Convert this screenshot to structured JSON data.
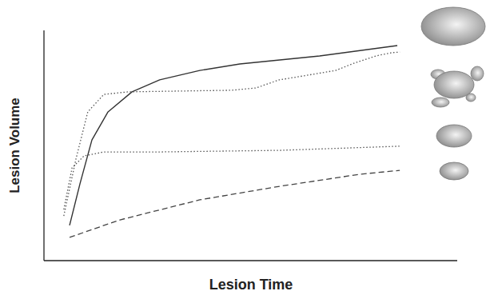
{
  "chart_data": {
    "type": "line",
    "x_label": "Lesion Time",
    "y_label": "Lesion Volume",
    "xlim": [
      0,
      100
    ],
    "ylim": [
      0,
      100
    ],
    "tick_labels": false,
    "grid": false,
    "series": [
      {
        "color": "#333333",
        "line_style": "solid",
        "x": [
          6.2,
          8.7,
          11.6,
          15.5,
          21.3,
          28,
          37.7,
          47.4,
          66.7,
          85.5
        ],
        "values": [
          15.3,
          33.3,
          52.4,
          64.6,
          73.3,
          78.5,
          82.6,
          85.4,
          88.9,
          93.4
        ]
      },
      {
        "color": "#555555",
        "line_style": "dotted",
        "x": [
          4.8,
          7.7,
          10.6,
          14.5,
          20.3,
          45.5,
          51.3,
          56.9,
          61.7,
          70.6,
          74.5,
          80.3,
          84.1,
          86.1
        ],
        "values": [
          19.4,
          43.8,
          64.6,
          72.2,
          73.3,
          74,
          75,
          78.5,
          79.9,
          82.6,
          85.4,
          88.9,
          90.3,
          90.6
        ]
      },
      {
        "color": "#555555",
        "line_style": "dotted",
        "x": [
          4.8,
          6.8,
          9.7,
          14.5,
          28,
          57.1,
          86.1
        ],
        "values": [
          22.2,
          40.3,
          45.5,
          47.2,
          47.2,
          47.9,
          49.7
        ]
      },
      {
        "color": "#444444",
        "line_style": "dashed",
        "x": [
          6.2,
          18.4,
          37.7,
          57.1,
          76.4,
          86.1
        ],
        "values": [
          10.1,
          17.7,
          26.4,
          32.3,
          37.5,
          39.2
        ]
      }
    ]
  }
}
